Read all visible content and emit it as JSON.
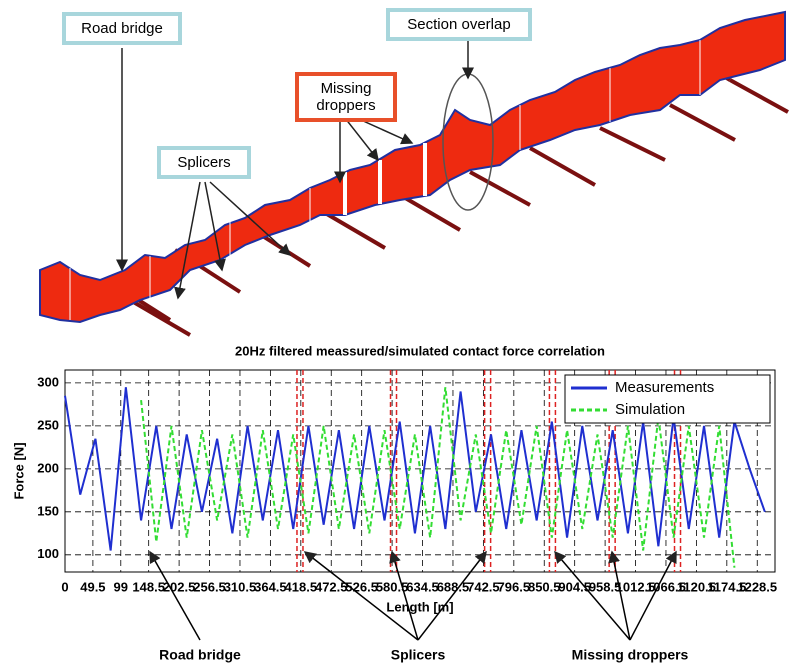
{
  "diagram": {
    "labels": {
      "road_bridge": "Road bridge",
      "section_overlap": "Section overlap",
      "missing_droppers": "Missing droppers",
      "splicers": "Splicers"
    }
  },
  "chart_data": {
    "type": "line",
    "title": "20Hz filtered meassured/simulated contact force correlation",
    "x_label": "Length [m]",
    "y_label": "Force [N]",
    "x": [
      0,
      27,
      54,
      81,
      108,
      135,
      162,
      189,
      216,
      243,
      270,
      297,
      324,
      351,
      378,
      405,
      432,
      459,
      486,
      513,
      540,
      567,
      594,
      621,
      648,
      675,
      702,
      729,
      756,
      783,
      810,
      837,
      864,
      891,
      918,
      945,
      972,
      999,
      1026,
      1053,
      1080,
      1107,
      1134,
      1161,
      1188,
      1215,
      1242
    ],
    "series": [
      {
        "name": "Measurements",
        "color": "#1f2fd0",
        "dash": false,
        "values": [
          285,
          170,
          235,
          105,
          295,
          140,
          250,
          130,
          240,
          150,
          235,
          125,
          250,
          140,
          245,
          130,
          250,
          135,
          245,
          130,
          250,
          140,
          255,
          125,
          250,
          130,
          290,
          150,
          240,
          130,
          245,
          140,
          255,
          120,
          250,
          140,
          245,
          125,
          255,
          110,
          260,
          130,
          250,
          120,
          255,
          200,
          150
        ]
      },
      {
        "name": "Simulation",
        "color": "#33dd33",
        "dash": true,
        "values": [
          null,
          null,
          null,
          null,
          null,
          280,
          115,
          250,
          120,
          245,
          140,
          240,
          120,
          245,
          130,
          240,
          125,
          250,
          130,
          240,
          125,
          245,
          130,
          240,
          120,
          295,
          140,
          240,
          125,
          245,
          135,
          250,
          120,
          245,
          130,
          240,
          120,
          250,
          105,
          260,
          120,
          250,
          120,
          250,
          85,
          null,
          null
        ]
      }
    ],
    "xlim": [
      0,
      1260
    ],
    "ylim": [
      80,
      315
    ],
    "xticks": [
      0,
      49.5,
      99,
      148.5,
      202.5,
      256.5,
      310.5,
      364.5,
      418.5,
      472.5,
      526.5,
      580.5,
      634.5,
      688.5,
      742.5,
      796.5,
      850.5,
      904.5,
      958.5,
      1012.5,
      1066.5,
      1120.5,
      1174.5,
      1228.5
    ],
    "yticks": [
      100,
      150,
      200,
      250,
      300
    ],
    "grid": true,
    "legend": "upper right",
    "marker_x": [
      417,
      583,
      750,
      865,
      971,
      1087
    ],
    "marker_color": "#dd2222",
    "annotations": [
      "Road bridge",
      "Splicers",
      "Missing droppers"
    ]
  }
}
